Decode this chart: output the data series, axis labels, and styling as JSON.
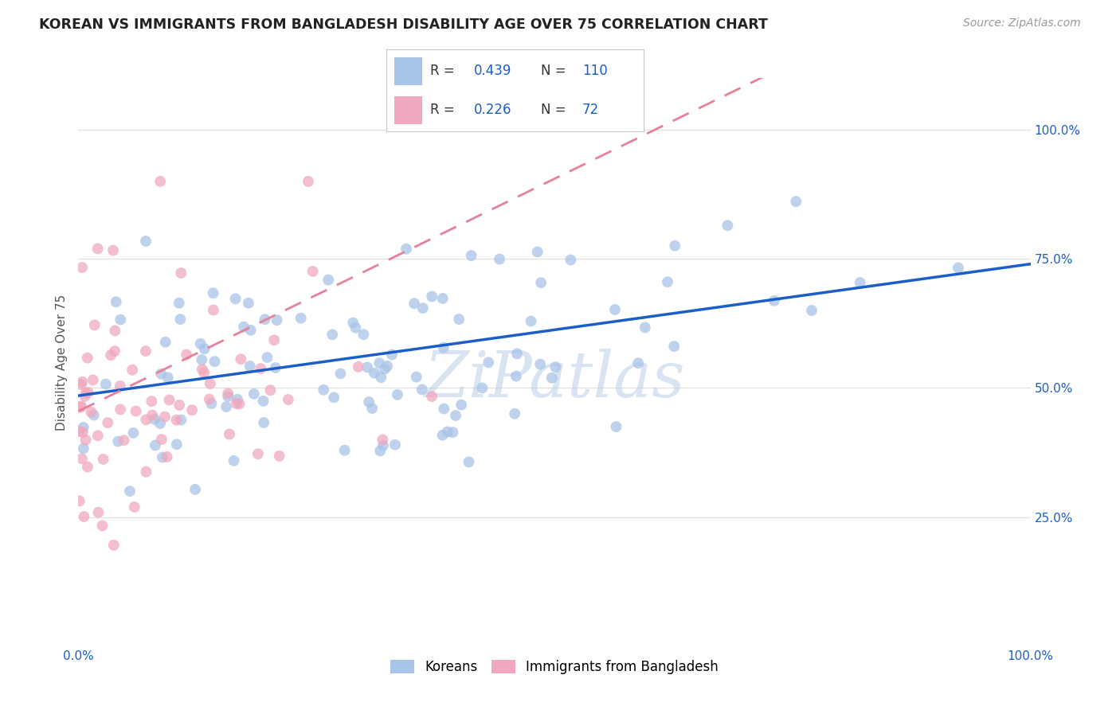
{
  "title": "KOREAN VS IMMIGRANTS FROM BANGLADESH DISABILITY AGE OVER 75 CORRELATION CHART",
  "source": "Source: ZipAtlas.com",
  "ylabel": "Disability Age Over 75",
  "xlim": [
    0.0,
    1.0
  ],
  "ylim": [
    0.0,
    1.1
  ],
  "yticks": [
    0.25,
    0.5,
    0.75,
    1.0
  ],
  "ytick_labels": [
    "25.0%",
    "50.0%",
    "75.0%",
    "100.0%"
  ],
  "xtick_labels": [
    "0.0%",
    "",
    "",
    "",
    "",
    "",
    "",
    "",
    "",
    "",
    "100.0%"
  ],
  "legend_korean_color": "#a8c4e8",
  "legend_bangladesh_color": "#f0a8be",
  "korean_scatter_color": "#a8c4e8",
  "bangladesh_scatter_color": "#f0a8be",
  "trend_korean_color": "#1a5fc8",
  "trend_bangladesh_color": "#e88098",
  "R_korean": 0.439,
  "N_korean": 110,
  "R_bangladesh": 0.226,
  "N_bangladesh": 72,
  "watermark": "ZiPatlas",
  "background_color": "#ffffff",
  "grid_color": "#e0e0e0",
  "title_color": "#222222",
  "axis_label_color": "#1a5fc8",
  "korean_scatter_alpha": 0.75,
  "bangladesh_scatter_alpha": 0.75,
  "scatter_size": 100,
  "korean_trend_start_y": 0.485,
  "korean_trend_end_y": 0.74,
  "bangladesh_trend_start_y": 0.455,
  "bangladesh_trend_slope": 0.9
}
